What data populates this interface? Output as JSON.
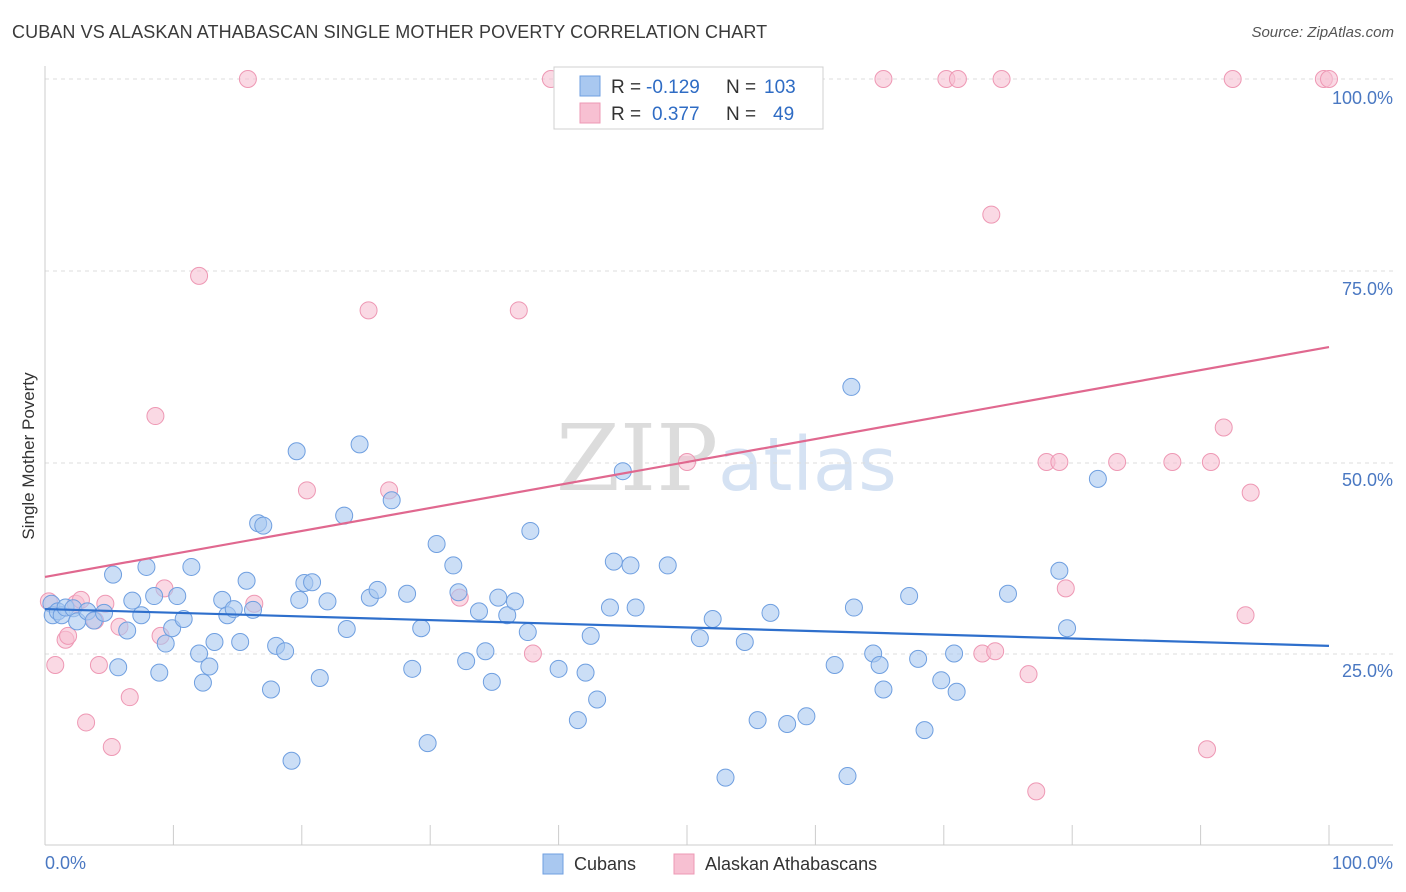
{
  "title": "CUBAN VS ALASKAN ATHABASCAN SINGLE MOTHER POVERTY CORRELATION CHART",
  "source": "Source: ZipAtlas.com",
  "legend_top": [
    {
      "r_label": "R =",
      "r_value": "-0.129",
      "n_label": "N =",
      "n_value": "103"
    },
    {
      "r_label": "R =",
      "r_value": "0.377",
      "n_label": "N =",
      "n_value": "49"
    }
  ],
  "watermark": {
    "zip": "ZIP",
    "atlas": "atlas"
  },
  "colors": {
    "blue_fill": "#a9c8f0",
    "blue_stroke": "#6f9fe0",
    "blue_line": "#2e6fcc",
    "pink_fill": "#f7c0d2",
    "pink_stroke": "#ee98b4",
    "pink_line": "#e0688f",
    "axis_text": "#4a78c2",
    "grid": "#dddddd"
  },
  "chart_data": {
    "type": "scatter",
    "title": "CUBAN VS ALASKAN ATHABASCAN SINGLE MOTHER POVERTY CORRELATION CHART",
    "xlabel": "",
    "ylabel": "Single Mother Poverty",
    "xlim": [
      0,
      100
    ],
    "ylim": [
      0,
      100
    ],
    "x_tick_labels": [
      "0.0%",
      "100.0%"
    ],
    "y_tick_labels": [
      "25.0%",
      "50.0%",
      "75.0%",
      "100.0%"
    ],
    "y_ticks": [
      25,
      50,
      75,
      100
    ],
    "grid": true,
    "legend_position": "bottom-center",
    "series": [
      {
        "name": "Cubans",
        "color": "#a9c8f0",
        "trend": {
          "x": [
            0,
            100
          ],
          "y": [
            30.8,
            26.0
          ]
        },
        "points": [
          [
            0.5,
            31.5
          ],
          [
            0.6,
            30.0
          ],
          [
            1.0,
            30.5
          ],
          [
            1.3,
            30.0
          ],
          [
            1.6,
            31.0
          ],
          [
            2.2,
            30.9
          ],
          [
            2.5,
            29.2
          ],
          [
            3.3,
            30.5
          ],
          [
            3.8,
            29.3
          ],
          [
            4.6,
            30.3
          ],
          [
            5.3,
            35.3
          ],
          [
            5.7,
            23.2
          ],
          [
            6.4,
            28.0
          ],
          [
            6.8,
            31.9
          ],
          [
            7.5,
            30.0
          ],
          [
            7.9,
            36.3
          ],
          [
            8.5,
            32.5
          ],
          [
            8.9,
            22.5
          ],
          [
            9.4,
            26.3
          ],
          [
            9.9,
            28.3
          ],
          [
            10.3,
            32.5
          ],
          [
            10.8,
            29.5
          ],
          [
            11.4,
            36.3
          ],
          [
            12.0,
            25.0
          ],
          [
            12.3,
            21.2
          ],
          [
            12.8,
            23.3
          ],
          [
            13.2,
            26.5
          ],
          [
            13.8,
            32.0
          ],
          [
            14.2,
            30.0
          ],
          [
            14.7,
            30.8
          ],
          [
            15.2,
            26.5
          ],
          [
            15.7,
            34.5
          ],
          [
            16.2,
            30.7
          ],
          [
            16.6,
            42.0
          ],
          [
            17.0,
            41.7
          ],
          [
            17.6,
            20.3
          ],
          [
            18.0,
            26.0
          ],
          [
            18.7,
            25.3
          ],
          [
            19.2,
            11.0
          ],
          [
            19.6,
            51.4
          ],
          [
            19.8,
            32.0
          ],
          [
            20.2,
            34.2
          ],
          [
            20.8,
            34.3
          ],
          [
            21.4,
            21.8
          ],
          [
            22.0,
            31.8
          ],
          [
            23.5,
            28.2
          ],
          [
            23.3,
            43.0
          ],
          [
            24.5,
            52.3
          ],
          [
            25.3,
            32.3
          ],
          [
            25.9,
            33.3
          ],
          [
            27.0,
            45.0
          ],
          [
            28.2,
            32.8
          ],
          [
            28.6,
            23.0
          ],
          [
            29.3,
            28.3
          ],
          [
            29.8,
            13.3
          ],
          [
            30.5,
            39.3
          ],
          [
            31.8,
            36.5
          ],
          [
            32.2,
            33.0
          ],
          [
            32.8,
            24.0
          ],
          [
            33.8,
            30.5
          ],
          [
            34.3,
            25.3
          ],
          [
            34.8,
            21.3
          ],
          [
            35.3,
            32.3
          ],
          [
            36.0,
            30.0
          ],
          [
            36.6,
            31.8
          ],
          [
            37.6,
            27.8
          ],
          [
            37.8,
            41.0
          ],
          [
            40.0,
            23.0
          ],
          [
            41.5,
            16.3
          ],
          [
            42.1,
            22.5
          ],
          [
            42.5,
            27.3
          ],
          [
            43.0,
            19.0
          ],
          [
            44.0,
            31.0
          ],
          [
            44.3,
            37.0
          ],
          [
            45.0,
            48.8
          ],
          [
            45.6,
            36.5
          ],
          [
            46.0,
            31.0
          ],
          [
            48.5,
            36.5
          ],
          [
            51.0,
            27.0
          ],
          [
            52.0,
            29.5
          ],
          [
            53.0,
            8.8
          ],
          [
            54.5,
            26.5
          ],
          [
            55.5,
            16.3
          ],
          [
            56.5,
            30.3
          ],
          [
            57.8,
            15.8
          ],
          [
            59.3,
            16.8
          ],
          [
            61.5,
            23.5
          ],
          [
            62.5,
            9.0
          ],
          [
            62.8,
            59.8
          ],
          [
            63.0,
            31.0
          ],
          [
            64.5,
            25.0
          ],
          [
            65.0,
            23.5
          ],
          [
            65.3,
            20.3
          ],
          [
            67.3,
            32.5
          ],
          [
            68.0,
            24.3
          ],
          [
            68.5,
            15.0
          ],
          [
            69.8,
            21.5
          ],
          [
            70.8,
            25.0
          ],
          [
            71.0,
            20.0
          ],
          [
            75.0,
            32.8
          ],
          [
            79.0,
            35.8
          ],
          [
            79.6,
            28.3
          ],
          [
            82.0,
            47.8
          ]
        ]
      },
      {
        "name": "Alaskan Athabascans",
        "color": "#f7c0d2",
        "trend": {
          "x": [
            0,
            100
          ],
          "y": [
            35.0,
            65.0
          ]
        },
        "points": [
          [
            0.3,
            31.8
          ],
          [
            0.8,
            23.5
          ],
          [
            1.6,
            26.8
          ],
          [
            1.8,
            27.3
          ],
          [
            2.4,
            31.5
          ],
          [
            2.8,
            32.0
          ],
          [
            3.2,
            16.0
          ],
          [
            3.9,
            29.3
          ],
          [
            4.2,
            23.5
          ],
          [
            4.7,
            31.5
          ],
          [
            5.2,
            12.8
          ],
          [
            5.8,
            28.5
          ],
          [
            6.6,
            19.3
          ],
          [
            8.6,
            56.0
          ],
          [
            9.0,
            27.3
          ],
          [
            9.3,
            33.5
          ],
          [
            12.0,
            74.3
          ],
          [
            15.8,
            100
          ],
          [
            16.3,
            31.5
          ],
          [
            20.4,
            46.3
          ],
          [
            25.2,
            69.8
          ],
          [
            26.8,
            46.3
          ],
          [
            32.3,
            32.3
          ],
          [
            36.9,
            69.8
          ],
          [
            38.0,
            25.0
          ],
          [
            39.4,
            100
          ],
          [
            50.0,
            50.0
          ],
          [
            65.3,
            100
          ],
          [
            70.2,
            100
          ],
          [
            71.1,
            100
          ],
          [
            73.7,
            82.3
          ],
          [
            74.5,
            100
          ],
          [
            73.0,
            25.0
          ],
          [
            74.0,
            25.3
          ],
          [
            76.6,
            22.3
          ],
          [
            77.2,
            7.0
          ],
          [
            78.0,
            50.0
          ],
          [
            79.0,
            50.0
          ],
          [
            79.5,
            33.5
          ],
          [
            83.5,
            50.0
          ],
          [
            87.8,
            50.0
          ],
          [
            90.5,
            12.5
          ],
          [
            90.8,
            50.0
          ],
          [
            91.8,
            54.5
          ],
          [
            92.5,
            100
          ],
          [
            93.5,
            30.0
          ],
          [
            93.9,
            46.0
          ],
          [
            99.6,
            100
          ],
          [
            100.0,
            100
          ]
        ]
      }
    ]
  }
}
